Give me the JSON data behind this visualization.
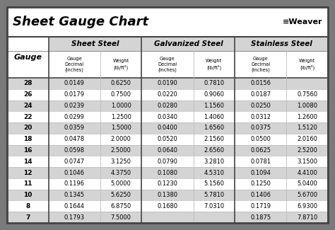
{
  "title": "Sheet Gauge Chart",
  "bg_outer": "#7a7a7a",
  "bg_inner": "#ffffff",
  "bg_header_row": "#d4d4d4",
  "bg_data_odd": "#d4d4d4",
  "bg_data_even": "#ffffff",
  "section_headers": [
    "Sheet Steel",
    "Galvanized Steel",
    "Stainless Steel"
  ],
  "gauge_col": [
    "28",
    "26",
    "24",
    "22",
    "20",
    "18",
    "16",
    "14",
    "12",
    "11",
    "10",
    "8",
    "7"
  ],
  "sheet_steel": [
    [
      "0.0149",
      "0.6250"
    ],
    [
      "0.0179",
      "0.7500"
    ],
    [
      "0.0239",
      "1.0000"
    ],
    [
      "0.0299",
      "1.2500"
    ],
    [
      "0.0359",
      "1.5000"
    ],
    [
      "0.0478",
      "2.0000"
    ],
    [
      "0.0598",
      "2.5000"
    ],
    [
      "0.0747",
      "3.1250"
    ],
    [
      "0.1046",
      "4.3750"
    ],
    [
      "0.1196",
      "5.0000"
    ],
    [
      "0.1345",
      "5.6250"
    ],
    [
      "0.1644",
      "6.8750"
    ],
    [
      "0.1793",
      "7.5000"
    ]
  ],
  "galvanized_steel": [
    [
      "0.0190",
      "0.7810"
    ],
    [
      "0.0220",
      "0.9060"
    ],
    [
      "0.0280",
      "1.1560"
    ],
    [
      "0.0340",
      "1.4060"
    ],
    [
      "0.0400",
      "1.6560"
    ],
    [
      "0.0520",
      "2.1560"
    ],
    [
      "0.0640",
      "2.6560"
    ],
    [
      "0.0790",
      "3.2810"
    ],
    [
      "0.1080",
      "4.5310"
    ],
    [
      "0.1230",
      "5.1560"
    ],
    [
      "0.1380",
      "5.7810"
    ],
    [
      "0.1680",
      "7.0310"
    ],
    [
      "",
      ""
    ]
  ],
  "stainless_steel": [
    [
      "0.0156",
      ""
    ],
    [
      "0.0187",
      "0.7560"
    ],
    [
      "0.0250",
      "1.0080"
    ],
    [
      "0.0312",
      "1.2600"
    ],
    [
      "0.0375",
      "1.5120"
    ],
    [
      "0.0500",
      "2.0160"
    ],
    [
      "0.0625",
      "2.5200"
    ],
    [
      "0.0781",
      "3.1500"
    ],
    [
      "0.1094",
      "4.4100"
    ],
    [
      "0.1250",
      "5.0400"
    ],
    [
      "0.1406",
      "5.6700"
    ],
    [
      "0.1719",
      "6.9300"
    ],
    [
      "0.1875",
      "7.8710"
    ]
  ],
  "border_color": "#444444",
  "grid_color": "#888888",
  "thin_grid_color": "#bbbbbb"
}
